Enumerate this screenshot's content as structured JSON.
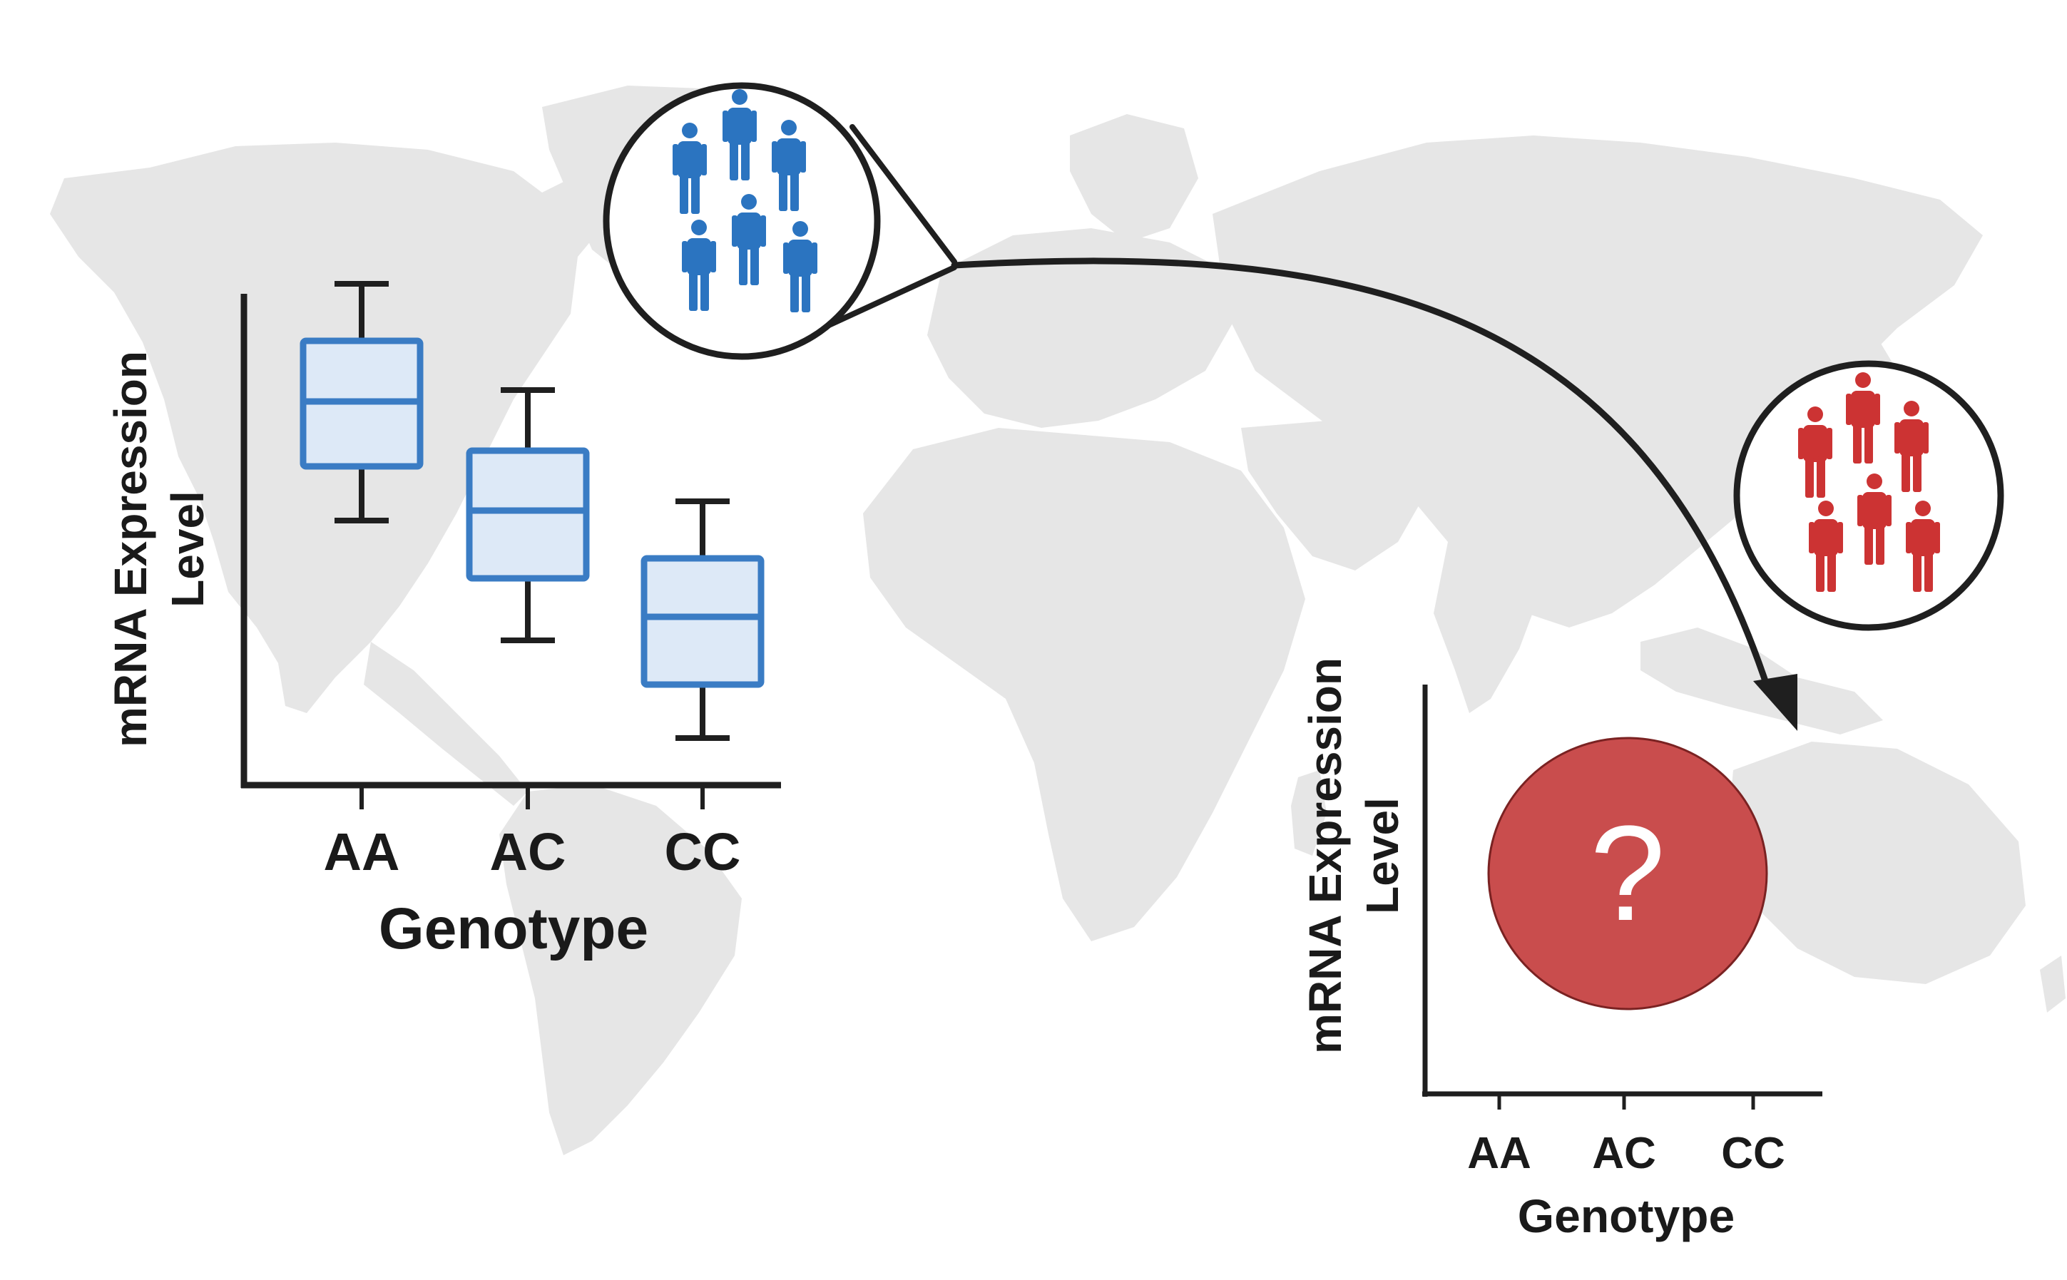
{
  "colors": {
    "map_land": "#e6e6e6",
    "ink": "#1f1f1f",
    "box_stroke": "#3a7cc4",
    "box_fill": "#dde9f7",
    "people_blue": "#2b74c0",
    "people_red": "#cc3333",
    "question_fill": "#c94d4d"
  },
  "icons": {
    "source_population": "people-group-icon",
    "target_population": "people-group-icon",
    "migration_arrow": "curved-arrow-icon"
  },
  "left_chart": {
    "ylabel_line1": "mRNA Expression",
    "ylabel_line2": "Level",
    "xlabel": "Genotype",
    "categories": [
      "AA",
      "AC",
      "CC"
    ]
  },
  "right_chart": {
    "ylabel_line1": "mRNA Expression",
    "ylabel_line2": "Level",
    "xlabel": "Genotype",
    "categories": [
      "AA",
      "AC",
      "CC"
    ],
    "unknown_symbol": "?"
  }
}
